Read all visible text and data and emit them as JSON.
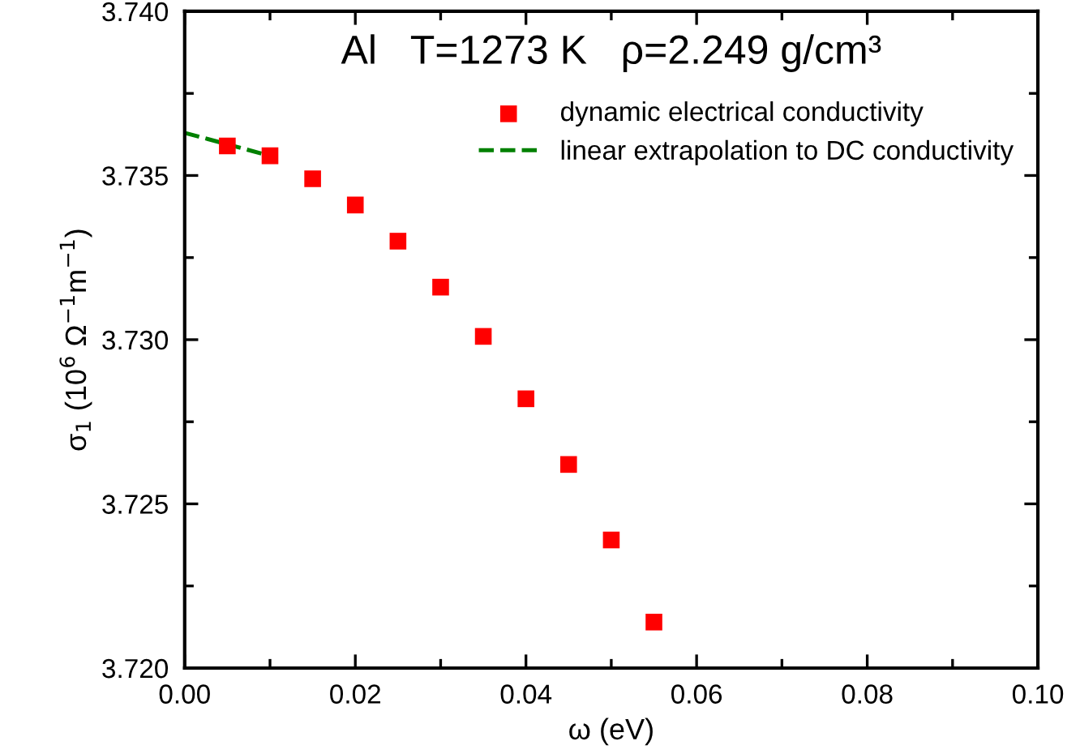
{
  "chart_data": {
    "type": "scatter",
    "title": "Al   T=1273 K   ρ=2.249 g/cm³",
    "xlabel": "ω (eV)",
    "ylabel": "σ$_{1}$ (10$^{6}$ Ω$^{−1}$m$^{−1}$)",
    "series": [
      {
        "name": "dynamic electrical conductivity",
        "color": "#ff0000",
        "marker": "square",
        "x": [
          0.005,
          0.01,
          0.015,
          0.02,
          0.025,
          0.03,
          0.035,
          0.04,
          0.045,
          0.05,
          0.055
        ],
        "values": [
          3.7359,
          3.7356,
          3.7349,
          3.7341,
          3.733,
          3.7316,
          3.7301,
          3.7282,
          3.7262,
          3.7239,
          3.7214
        ]
      },
      {
        "name": "linear extrapolation to DC conductivity",
        "type": "line",
        "color": "#008000",
        "line_style": "dashed",
        "x": [
          0.0,
          0.01
        ],
        "values": [
          3.7363,
          3.7356
        ]
      }
    ],
    "xlim": [
      0.0,
      0.1
    ],
    "xticks": [
      {
        "value": 0,
        "label": "0.00"
      },
      {
        "value": 0.01,
        "label": null
      },
      {
        "value": 0.02,
        "label": "0.02"
      },
      {
        "value": 0.03,
        "label": null
      },
      {
        "value": 0.04,
        "label": "0.04"
      },
      {
        "value": 0.05,
        "label": null
      },
      {
        "value": 0.06,
        "label": "0.06"
      },
      {
        "value": 0.07,
        "label": null
      },
      {
        "value": 0.08,
        "label": "0.08"
      },
      {
        "value": 0.09,
        "label": null
      },
      {
        "value": 0.1,
        "label": "0.10"
      }
    ],
    "ylim": [
      3.72,
      3.74
    ],
    "yticks": [
      {
        "value": 3.72,
        "label": "3.720"
      },
      {
        "value": 3.7225,
        "label": null
      },
      {
        "value": 3.725,
        "label": "3.725"
      },
      {
        "value": 3.7275,
        "label": null
      },
      {
        "value": 3.73,
        "label": "3.730"
      },
      {
        "value": 3.7325,
        "label": null
      },
      {
        "value": 3.735,
        "label": "3.735"
      },
      {
        "value": 3.7375,
        "label": null
      },
      {
        "value": 3.74,
        "label": "3.740"
      }
    ],
    "legend": "top right"
  }
}
